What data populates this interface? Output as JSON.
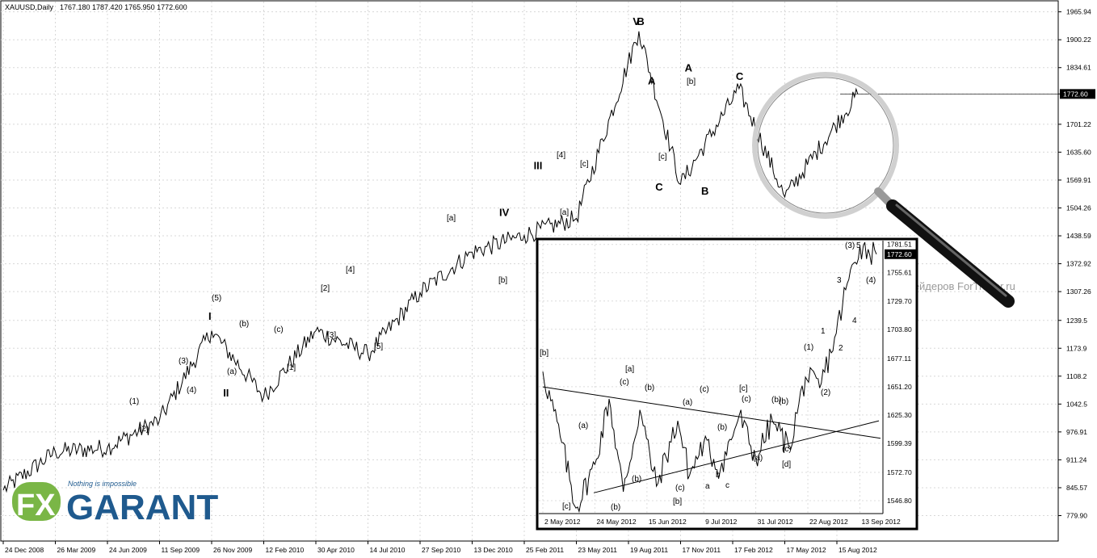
{
  "header": {
    "symbol": "XAUUSD,Daily",
    "ohlc": "1767.180 1787.420 1765.950 1772.600"
  },
  "watermark": "Портал для трейдеров ForTrader.ru",
  "logo": {
    "tagline": "Nothing is impossible",
    "fx": "FX",
    "brand": "GARANT"
  },
  "colors": {
    "price": "#000000",
    "grid": "#c8c8c8",
    "logo_blue": "#1f5a8e",
    "logo_green": "#7ab646",
    "current_price_bg": "#000000"
  },
  "icons": [
    "magnifier-icon"
  ],
  "chart_data": [
    {
      "type": "line",
      "name": "main",
      "title": "XAUUSD,Daily",
      "ylim": [
        720,
        1990
      ],
      "y_ticks": [
        "1965.94",
        "1900.22",
        "1834.61",
        "1772.60",
        "1701.22",
        "1635.60",
        "1569.91",
        "1504.26",
        "1438.59",
        "1372.92",
        "1307.26",
        "1239.5",
        "1173.9",
        "1108.2",
        "1042.5",
        "976.91",
        "911.24",
        "845.57",
        "779.90"
      ],
      "y_tick_values": [
        1965.94,
        1900.22,
        1834.61,
        1772.6,
        1701.22,
        1635.6,
        1569.91,
        1504.26,
        1438.59,
        1372.92,
        1307.26,
        1239.5,
        1173.9,
        1108.2,
        1042.5,
        976.91,
        911.24,
        845.57,
        779.9
      ],
      "current_price": "1772.60",
      "current_price_value": 1772.6,
      "x_ticks": [
        "24 Dec 2008",
        "26 Mar 2009",
        "24 Jun 2009",
        "11 Sep 2009",
        "26 Nov 2009",
        "12 Feb 2010",
        "30 Apr 2010",
        "14 Jul 2010",
        "27 Sep 2010",
        "13 Dec 2010",
        "25 Feb 2011",
        "23 May 2011",
        "19 Aug 2011",
        "17 Nov 2011",
        "17 Feb 2012",
        "17 May 2012",
        "15 Aug 2012"
      ],
      "x": [
        "24 Dec 2008",
        "26 Mar 2009",
        "24 Jun 2009",
        "11 Sep 2009",
        "26 Nov 2009",
        "12 Feb 2010",
        "30 Apr 2010",
        "14 Jul 2010",
        "27 Sep 2010",
        "13 Dec 2010",
        "25 Feb 2011",
        "23 May 2011",
        "6 Sep 2011",
        "17 Nov 2011",
        "28 Feb 2012",
        "17 May 2012",
        "20 Sep 2012"
      ],
      "y": [
        840,
        930,
        940,
        1005,
        1215,
        1060,
        1215,
        1160,
        1305,
        1400,
        1440,
        1480,
        1920,
        1560,
        1785,
        1530,
        1772.6
      ],
      "waves": [
        {
          "x": "26 Nov 2009",
          "y": 1226,
          "label": "I"
        },
        {
          "x": "18 Dec 2009",
          "y": 1045,
          "label": "II"
        },
        {
          "x": "18 Mar 2011",
          "y": 1580,
          "label": "III"
        },
        {
          "x": "25 Jan 2011",
          "y": 1470,
          "label": "IV"
        },
        {
          "x": "1 Sep 2011",
          "y": 1920,
          "label": "V"
        },
        {
          "x": "8 Sep 2011",
          "y": 1920,
          "label": "B"
        },
        {
          "x": "27 Sep 2011",
          "y": 1780,
          "label": "A"
        },
        {
          "x": "10 Oct 2011",
          "y": 1530,
          "label": "C"
        },
        {
          "x": "30 Nov 2011",
          "y": 1810,
          "label": "A"
        },
        {
          "x": "29 Dec 2011",
          "y": 1520,
          "label": "B"
        },
        {
          "x": "28 Feb 2012",
          "y": 1790,
          "label": "C"
        }
      ],
      "labels": [
        "(1)",
        "(2)",
        "(3)",
        "(4)",
        "(5)",
        "(a)",
        "(b)",
        "(c)",
        "[1]",
        "[2]",
        "[3]",
        "[4]",
        "[5]",
        "[a]",
        "[b]",
        "[c]",
        "[4]",
        "[a]",
        "[b]",
        "[c]"
      ]
    },
    {
      "type": "line",
      "name": "inset",
      "ylim": [
        1535,
        1785
      ],
      "y_ticks": [
        "1781.51",
        "1755.61",
        "1729.70",
        "1703.80",
        "1677.11",
        "1651.20",
        "1625.30",
        "1599.39",
        "1572.70",
        "1546.80"
      ],
      "y_tick_values": [
        1781.51,
        1755.61,
        1729.7,
        1703.8,
        1677.11,
        1651.2,
        1625.3,
        1599.39,
        1572.7,
        1546.8
      ],
      "current_price": "1772.60",
      "current_price_value": 1772.6,
      "x_ticks": [
        "2 May 2012",
        "24 May 2012",
        "15 Jun 2012",
        "9 Jul 2012",
        "31 Jul 2012",
        "22 Aug 2012",
        "13 Sep 2012"
      ],
      "x": [
        "2 May 2012",
        "10 May 2012",
        "16 May 2012",
        "24 May 2012",
        "30 May 2012",
        "5 Jun 2012",
        "12 Jun 2012",
        "19 Jun 2012",
        "28 Jun 2012",
        "3 Jul 2012",
        "9 Jul 2012",
        "16 Jul 2012",
        "24 Jul 2012",
        "31 Jul 2012",
        "7 Aug 2012",
        "14 Aug 2012",
        "21 Aug 2012",
        "27 Aug 2012",
        "3 Sep 2012",
        "7 Sep 2012",
        "13 Sep 2012",
        "20 Sep 2012"
      ],
      "y": [
        1665,
        1600,
        1540,
        1580,
        1640,
        1555,
        1630,
        1560,
        1620,
        1570,
        1600,
        1575,
        1625,
        1585,
        1620,
        1595,
        1660,
        1650,
        1700,
        1740,
        1780,
        1772.6
      ],
      "labels": [
        "[b]",
        "[c]",
        "(a)",
        "(b)",
        "(c)",
        "[a]",
        "(b)",
        "(b)",
        "(c)",
        "[b]",
        "(a)",
        "(c)",
        "(b)",
        "a",
        "b",
        "c",
        "(a)",
        "(b)",
        "[c]",
        "(c)",
        "(b)",
        "(c)",
        "[d]",
        "(1)",
        "(2)",
        "1",
        "2",
        "3",
        "4",
        "(3)",
        "5",
        "(4)"
      ]
    }
  ]
}
